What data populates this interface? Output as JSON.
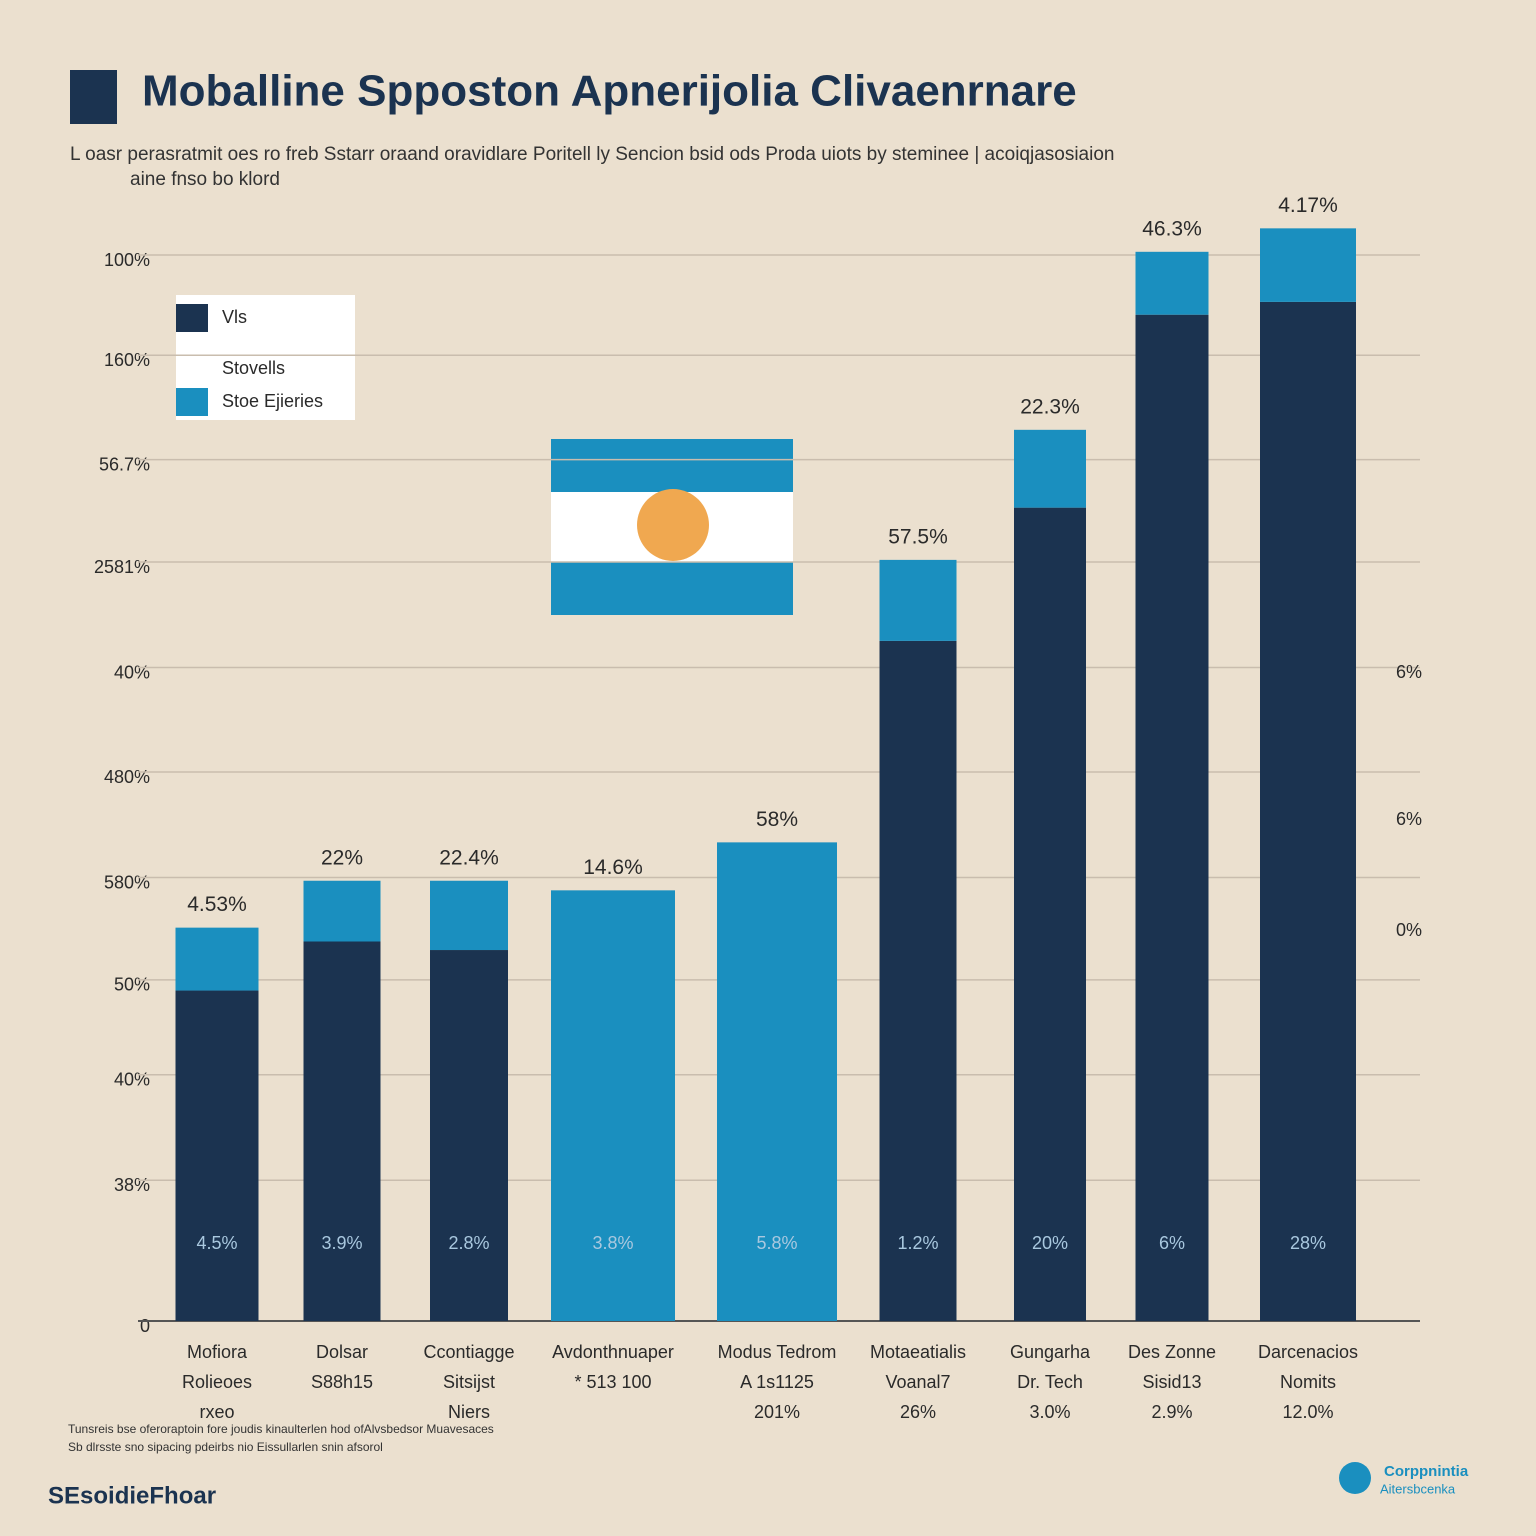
{
  "chart_data": {
    "type": "stacked_bar",
    "title": "Moballine Spposton Apnerijolia Clivaenrnare",
    "subtitle": [
      "L oasr perasratmit oes ro freb Sstarr oraand oravidlare Poritell ly Sencion bsid ods Proda uiots by steminee | acoiqjasosiaion",
      "aine fnso bo klord"
    ],
    "categories": [
      [
        "Mofiora",
        "Rolieoes",
        "rxeo"
      ],
      [
        "Dolsar",
        "S88h15"
      ],
      [
        "Ccontiagge",
        "Sitsijst",
        "Niers"
      ],
      [
        "Avdonthnuaper",
        "* 513 100"
      ],
      [
        "Modus Tedrom",
        "A 1s1125",
        "201%"
      ],
      [
        "Motaeatialis",
        "Voanal7",
        "26%"
      ],
      [
        "Gungarha",
        "Dr. Tech",
        "3.0%"
      ],
      [
        "Des Zonne",
        "Sisid13",
        "2.9%"
      ],
      [
        "Darcenacios",
        "Nomits",
        "12.0%"
      ]
    ],
    "series": [
      {
        "name": "Vls",
        "color": "#1b3350",
        "values": [
          31.0,
          35.6,
          34.8,
          0,
          0,
          63.8,
          76.3,
          94.4,
          95.6
        ]
      },
      {
        "name": "Stoe Ejieries",
        "color": "#1a8fbf",
        "values": [
          5.9,
          5.7,
          6.5,
          40.4,
          44.9,
          7.6,
          7.3,
          5.9,
          6.9
        ]
      }
    ],
    "legend_extra": "Stovells",
    "top_labels": [
      "4.53%",
      "22%",
      "22.4%",
      "14.6%",
      "58%",
      "57.5%",
      "22.3%",
      "46.3%",
      "4.17%"
    ],
    "base_labels": [
      "4.5%",
      "3.9%",
      "2.8%",
      "3.8%",
      "5.8%",
      "1.2%",
      "20%",
      "6%",
      "28%"
    ],
    "right_labels": [
      "6%",
      "6%",
      "0%"
    ],
    "ylim": [
      0,
      100
    ],
    "yticks": [
      0,
      {
        "value": 13.2,
        "label": "38%"
      },
      {
        "value": 23.1,
        "label": "40%"
      },
      {
        "value": 32.0,
        "label": "50%"
      },
      {
        "value": 41.6,
        "label": "580%"
      },
      {
        "value": 51.5,
        "label": "480%"
      },
      {
        "value": 61.3,
        "label": "40%"
      },
      {
        "value": 71.2,
        "label": "2581%"
      },
      {
        "value": 80.8,
        "label": "56.7%"
      },
      {
        "value": 90.6,
        "label": "160%"
      },
      {
        "value": 100,
        "label": "100%"
      }
    ],
    "grid": true,
    "footnote": [
      "Tunsreis bse oferoraptoin fore joudis kinaulterlen hod ofAlvsbedsor Muavesaces",
      "Sb dlrsste sno sipacing pdeirbs nio Eissullarlen snin afsorol"
    ],
    "brand": "SEsoidieFhoar",
    "logo": [
      "Corppnintia",
      "Aitersbcenka"
    ]
  }
}
